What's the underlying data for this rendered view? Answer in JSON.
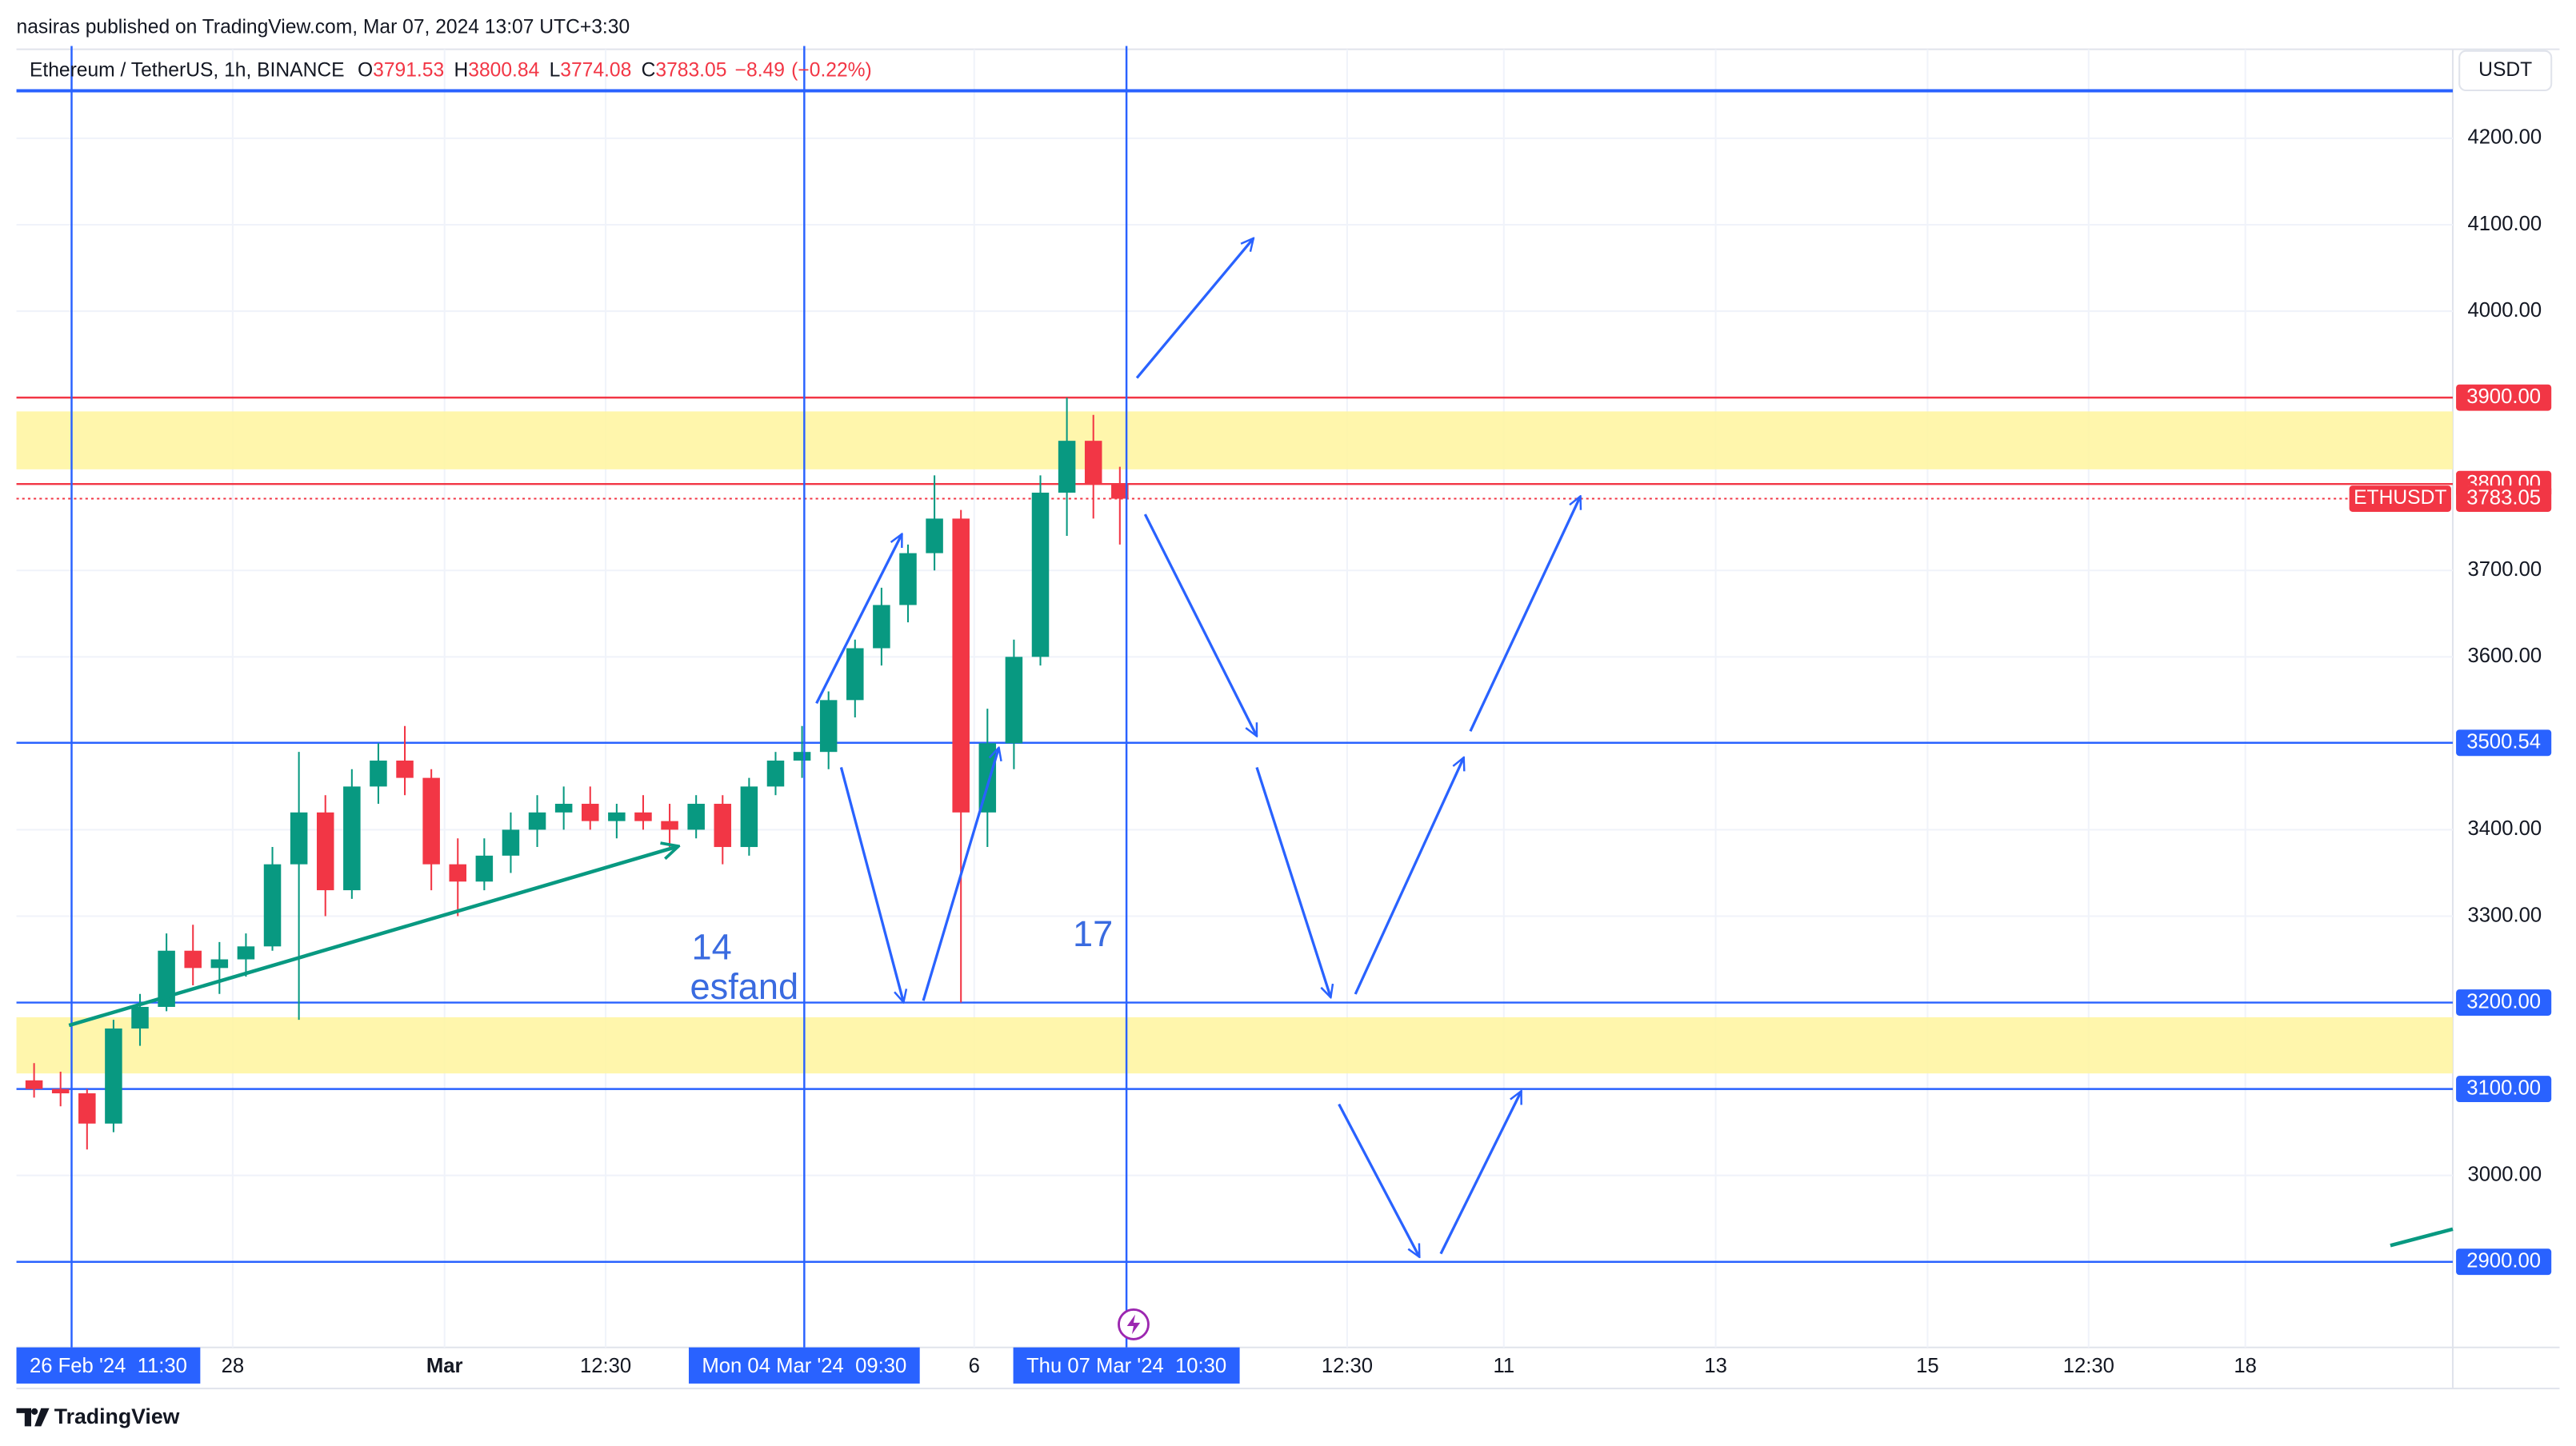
{
  "header": {
    "published": "nasiras published on TradingView.com, Mar 07, 2024 13:07 UTC+3:30",
    "brand": "TradingView"
  },
  "chart_data": {
    "type": "candlestick",
    "legend": {
      "symbol": "Ethereum / TetherUS, 1h, BINANCE",
      "ohlc": [
        {
          "label": "O",
          "value": 3791.53
        },
        {
          "label": "H",
          "value": 3800.84
        },
        {
          "label": "L",
          "value": 3774.08
        },
        {
          "label": "C",
          "value": 3783.05
        }
      ],
      "change": {
        "value": -8.49,
        "label": "−8.49"
      },
      "change_pct": {
        "value": -0.22,
        "label": "(−0.22%)"
      }
    },
    "currency": "USDT",
    "symbol_tag": "ETHUSDT",
    "up_color": "#089981",
    "down_color": "#f23645",
    "xlim": [
      "2024-02-25T23:00",
      "2024-03-19T23:00"
    ],
    "ylim": [
      2801,
      4303
    ],
    "yticks": [
      {
        "value": 3000,
        "label": "3000.00"
      },
      {
        "value": 3300,
        "label": "3300.00"
      },
      {
        "value": 3400,
        "label": "3400.00"
      },
      {
        "value": 3600,
        "label": "3600.00"
      },
      {
        "value": 3700,
        "label": "3700.00"
      },
      {
        "value": 4000,
        "label": "4000.00"
      },
      {
        "value": 4100,
        "label": "4100.00"
      },
      {
        "value": 4200,
        "label": "4200.00"
      }
    ],
    "xticks": [
      {
        "value": "2024-02-28T00:00",
        "label": "28"
      },
      {
        "value": "2024-03-01T00:00",
        "label": "Mar"
      },
      {
        "value": "2024-03-02T12:30",
        "label": "12:30"
      },
      {
        "value": "2024-03-06T00:00",
        "label": "6"
      },
      {
        "value": "2024-03-09T12:30",
        "label": "12:30"
      },
      {
        "value": "2024-03-11T00:00",
        "label": "11"
      },
      {
        "value": "2024-03-13T00:00",
        "label": "13"
      },
      {
        "value": "2024-03-15T00:00",
        "label": "15"
      },
      {
        "value": "2024-03-16T12:30",
        "label": "12:30"
      },
      {
        "value": "2024-03-18T00:00",
        "label": "18"
      }
    ],
    "grid": true,
    "levels": [
      {
        "value": 4255,
        "color": "#2962ff"
      },
      {
        "value": 3900,
        "label": "3900.00",
        "color": "#f23645"
      },
      {
        "value": 3800,
        "label": "3800.00",
        "color": "#f23645"
      },
      {
        "value": 3500.54,
        "label": "3500.54",
        "color": "#2962ff"
      },
      {
        "value": 3200,
        "label": "3200.00",
        "color": "#2962ff"
      },
      {
        "value": 3100,
        "label": "3100.00",
        "color": "#2962ff"
      },
      {
        "value": 2900,
        "label": "2900.00",
        "color": "#2962ff"
      }
    ],
    "zones": [
      {
        "from": 3817,
        "to": 3884,
        "color": "#fff59d"
      },
      {
        "from": 3118,
        "to": 3183,
        "color": "#fff59d"
      }
    ],
    "vlines": [
      {
        "value": "2024-02-26T11:30",
        "label": "26 Feb '24  11:30"
      },
      {
        "value": "2024-03-04T09:30",
        "label": "Mon 04 Mar '24  09:30"
      },
      {
        "value": "2024-03-07T10:30",
        "label": "Thu 07 Mar '24  10:30"
      }
    ],
    "annotations": [
      "14",
      "esfand",
      "17"
    ],
    "candles": {
      "x": [
        "2024-02-26T00:00",
        "2024-02-26T06:00",
        "2024-02-26T12:00",
        "2024-02-26T18:00",
        "2024-02-27T00:00",
        "2024-02-27T06:00",
        "2024-02-27T12:00",
        "2024-02-27T18:00",
        "2024-02-28T00:00",
        "2024-02-28T06:00",
        "2024-02-28T12:00",
        "2024-02-28T18:00",
        "2024-02-29T00:00",
        "2024-02-29T06:00",
        "2024-02-29T12:00",
        "2024-02-29T18:00",
        "2024-03-01T00:00",
        "2024-03-01T06:00",
        "2024-03-01T12:00",
        "2024-03-01T18:00",
        "2024-03-02T00:00",
        "2024-03-02T06:00",
        "2024-03-02T12:00",
        "2024-03-02T18:00",
        "2024-03-03T00:00",
        "2024-03-03T06:00",
        "2024-03-03T12:00",
        "2024-03-03T18:00",
        "2024-03-04T00:00",
        "2024-03-04T06:00",
        "2024-03-04T12:00",
        "2024-03-04T18:00",
        "2024-03-05T00:00",
        "2024-03-05T06:00",
        "2024-03-05T12:00",
        "2024-03-05T18:00",
        "2024-03-06T00:00",
        "2024-03-06T06:00",
        "2024-03-06T12:00",
        "2024-03-06T18:00",
        "2024-03-07T00:00",
        "2024-03-07T06:00"
      ],
      "open": [
        3110,
        3100,
        3095,
        3060,
        3170,
        3195,
        3260,
        3240,
        3250,
        3265,
        3360,
        3420,
        3330,
        3450,
        3480,
        3460,
        3360,
        3340,
        3370,
        3400,
        3420,
        3430,
        3410,
        3420,
        3410,
        3400,
        3430,
        3380,
        3450,
        3480,
        3490,
        3550,
        3610,
        3660,
        3720,
        3760,
        3420,
        3500,
        3600,
        3790,
        3850,
        3800
      ],
      "high": [
        3130,
        3120,
        3100,
        3180,
        3210,
        3280,
        3290,
        3270,
        3280,
        3380,
        3490,
        3440,
        3470,
        3500,
        3520,
        3470,
        3390,
        3390,
        3420,
        3440,
        3450,
        3450,
        3430,
        3440,
        3430,
        3440,
        3440,
        3460,
        3490,
        3520,
        3560,
        3620,
        3680,
        3730,
        3810,
        3770,
        3540,
        3620,
        3810,
        3900,
        3880,
        3820
      ],
      "low": [
        3090,
        3080,
        3030,
        3050,
        3150,
        3190,
        3220,
        3210,
        3230,
        3260,
        3180,
        3300,
        3320,
        3430,
        3440,
        3330,
        3300,
        3330,
        3350,
        3380,
        3400,
        3400,
        3390,
        3400,
        3380,
        3390,
        3360,
        3370,
        3440,
        3460,
        3470,
        3530,
        3590,
        3640,
        3700,
        3200,
        3380,
        3470,
        3590,
        3740,
        3760,
        3730
      ],
      "close": [
        3100,
        3095,
        3060,
        3170,
        3195,
        3260,
        3240,
        3250,
        3265,
        3360,
        3420,
        3330,
        3450,
        3480,
        3460,
        3360,
        3340,
        3370,
        3400,
        3420,
        3430,
        3410,
        3420,
        3410,
        3400,
        3430,
        3380,
        3450,
        3480,
        3490,
        3550,
        3610,
        3660,
        3720,
        3760,
        3420,
        3500,
        3600,
        3790,
        3850,
        3800,
        3783.05
      ]
    }
  }
}
